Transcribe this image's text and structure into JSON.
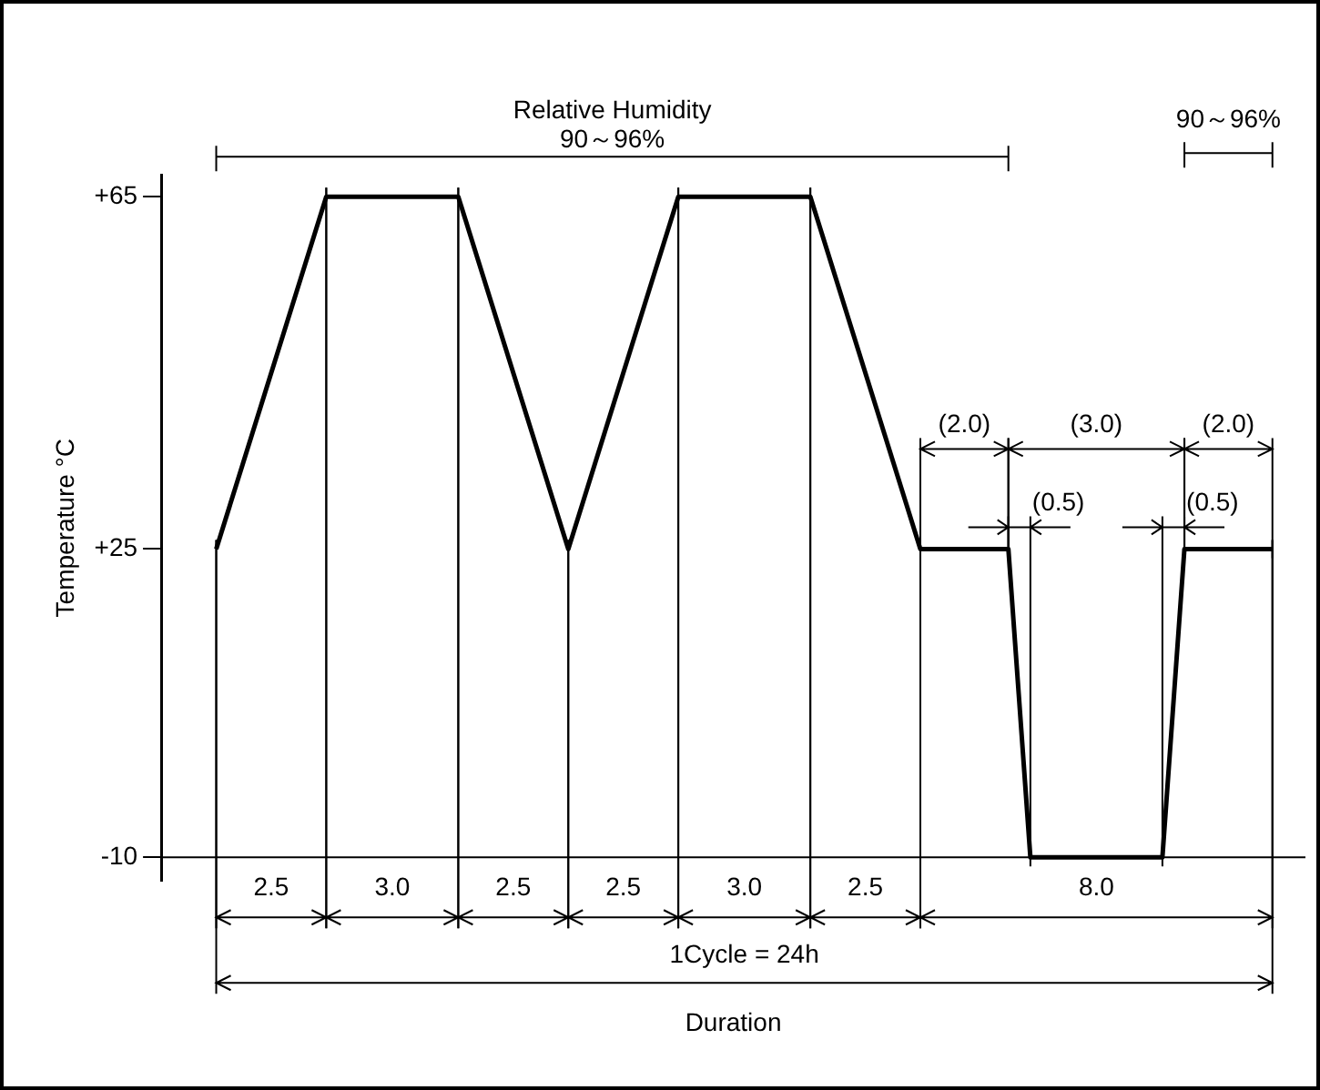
{
  "chart_data": {
    "type": "line",
    "xlabel": "Duration",
    "ylabel": "Temperature °C",
    "categories": [
      null,
      null,
      null,
      null,
      null,
      null,
      null,
      null,
      null,
      null,
      null,
      null,
      null,
      null,
      null,
      null,
      null,
      null,
      null,
      null,
      null,
      null,
      null,
      null,
      null,
      null,
      null,
      null,
      null,
      null,
      null,
      null,
      null,
      null,
      null,
      null,
      null,
      null,
      null,
      null,
      null,
      null,
      null,
      null,
      null,
      null,
      null,
      null,
      null,
      null,
      null,
      null
    ],
    "ylim": [
      -12.7,
      67.5
    ],
    "yticks": [
      {
        "value": -10,
        "label": "-10"
      },
      {
        "value": 25,
        "label": "+25"
      },
      {
        "value": 65,
        "label": "+65"
      }
    ],
    "tick_labels": "y",
    "grid": true,
    "legend": false,
    "marker": "none",
    "line_style": "solid",
    "series": [
      {
        "color": "#000000",
        "values": [
          null,
          null,
          25,
          null,
          null,
          null,
          null,
          65,
          null,
          null,
          null,
          null,
          null,
          65,
          null,
          null,
          null,
          null,
          25,
          null,
          null,
          null,
          null,
          65,
          null,
          null,
          null,
          null,
          null,
          65,
          null,
          null,
          null,
          null,
          25,
          null,
          null,
          null,
          25,
          -10,
          null,
          null,
          null,
          null,
          null,
          -10,
          25,
          null,
          null,
          null,
          25,
          null
        ]
      }
    ],
    "annotations": [
      "Relative Humidity",
      "90～96%",
      "90～96%",
      "(2.0)",
      "(3.0)",
      "(2.0)",
      "(0.5)",
      "(0.5)",
      "2.5",
      "3.0",
      "2.5",
      "2.5",
      "3.0",
      "2.5",
      "8.0",
      "1Cycle = 24h"
    ]
  }
}
